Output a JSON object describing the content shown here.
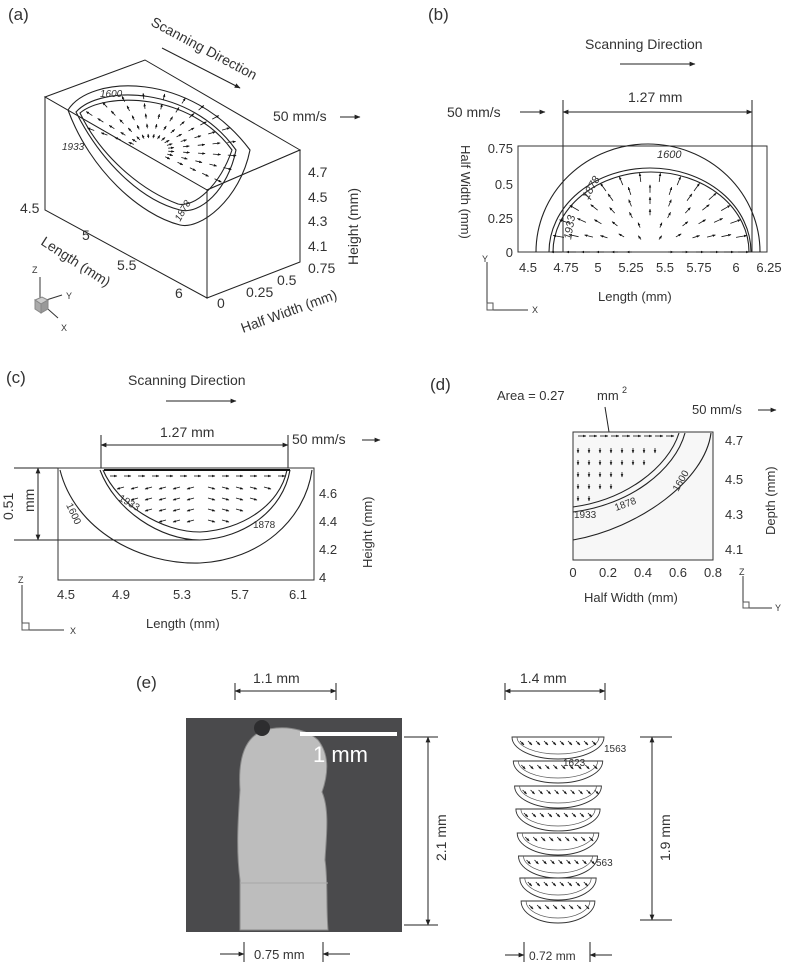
{
  "panels": {
    "a": {
      "label": "(a)",
      "scanning_direction": "Scanning Direction",
      "speed": "50 mm/s",
      "contours": [
        "1600",
        "1933",
        "1878"
      ],
      "length_axis": {
        "title": "Length (mm)",
        "ticks": [
          "4.5",
          "5",
          "5.5",
          "6"
        ]
      },
      "halfwidth_axis": {
        "title": "Half Width (mm)",
        "ticks": [
          "0",
          "0.25",
          "0.5",
          "0.75"
        ]
      },
      "height_axis": {
        "title": "Height (mm)",
        "ticks": [
          "4.7",
          "4.5",
          "4.3",
          "4.1"
        ]
      },
      "triad": {
        "z": "Z",
        "y": "Y",
        "x": "X"
      }
    },
    "b": {
      "label": "(b)",
      "scanning_direction": "Scanning Direction",
      "speed": "50 mm/s",
      "dimension": "1.27 mm",
      "contours": [
        "1600",
        "1878",
        "1933"
      ],
      "y_axis": {
        "title": "Half Width (mm)",
        "ticks": [
          "0.75",
          "0.5",
          "0.25",
          "0"
        ]
      },
      "x_axis": {
        "title": "Length (mm)",
        "ticks": [
          "4.5",
          "4.75",
          "5",
          "5.25",
          "5.5",
          "5.75",
          "6",
          "6.25"
        ]
      },
      "triad": {
        "y": "Y",
        "x": "X"
      }
    },
    "c": {
      "label": "(c)",
      "scanning_direction": "Scanning Direction",
      "speed": "50 mm/s",
      "dimension": "1.27 mm",
      "depth_dimension": "0.51",
      "depth_unit": "mm",
      "contours": [
        "1600",
        "1933",
        "1878"
      ],
      "y_axis": {
        "title": "Height (mm)",
        "ticks": [
          "4.6",
          "4.4",
          "4.2",
          "4"
        ]
      },
      "x_axis": {
        "title": "Length (mm)",
        "ticks": [
          "4.5",
          "4.9",
          "5.3",
          "5.7",
          "6.1"
        ]
      },
      "triad": {
        "z": "Z",
        "x": "X"
      }
    },
    "d": {
      "label": "(d)",
      "area_label": "Area = 0.27",
      "area_unit": "mm",
      "area_exp": "2",
      "speed": "50 mm/s",
      "contours": [
        "1600",
        "1933",
        "1878"
      ],
      "y_axis": {
        "title": "Depth (mm)",
        "ticks": [
          "4.7",
          "4.5",
          "4.3",
          "4.1"
        ]
      },
      "x_axis": {
        "title": "Half Width (mm)",
        "ticks": [
          "0",
          "0.2",
          "0.4",
          "0.6",
          "0.8"
        ]
      },
      "triad": {
        "z": "Z",
        "y": "Y"
      }
    },
    "e": {
      "label": "(e)",
      "left": {
        "top_width": "1.1 mm",
        "scale_bar": "1 mm",
        "height": "2.1 mm",
        "bottom_width": "0.75 mm"
      },
      "right": {
        "top_width": "1.4 mm",
        "height": "1.9 mm",
        "bottom_width": "0.72 mm",
        "contours": [
          "1563",
          "1623",
          "563"
        ]
      }
    }
  },
  "colors": {
    "micrograph_bg": "#4a4a4c",
    "melt_region": "#bdbdbd"
  }
}
